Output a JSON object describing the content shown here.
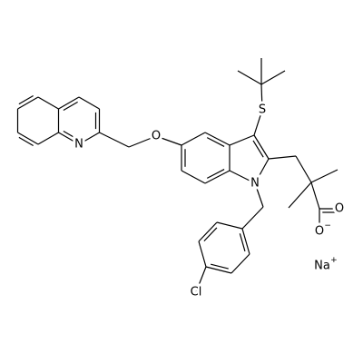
{
  "atoms": [
    {
      "label": "S"
    },
    {
      "label": "O"
    },
    {
      "label": "N"
    },
    {
      "label": "N"
    },
    {
      "label": "O"
    },
    {
      "label": "O",
      "charge": "−"
    },
    {
      "label": "Cl"
    },
    {
      "label": "Na",
      "charge": "+"
    }
  ]
}
